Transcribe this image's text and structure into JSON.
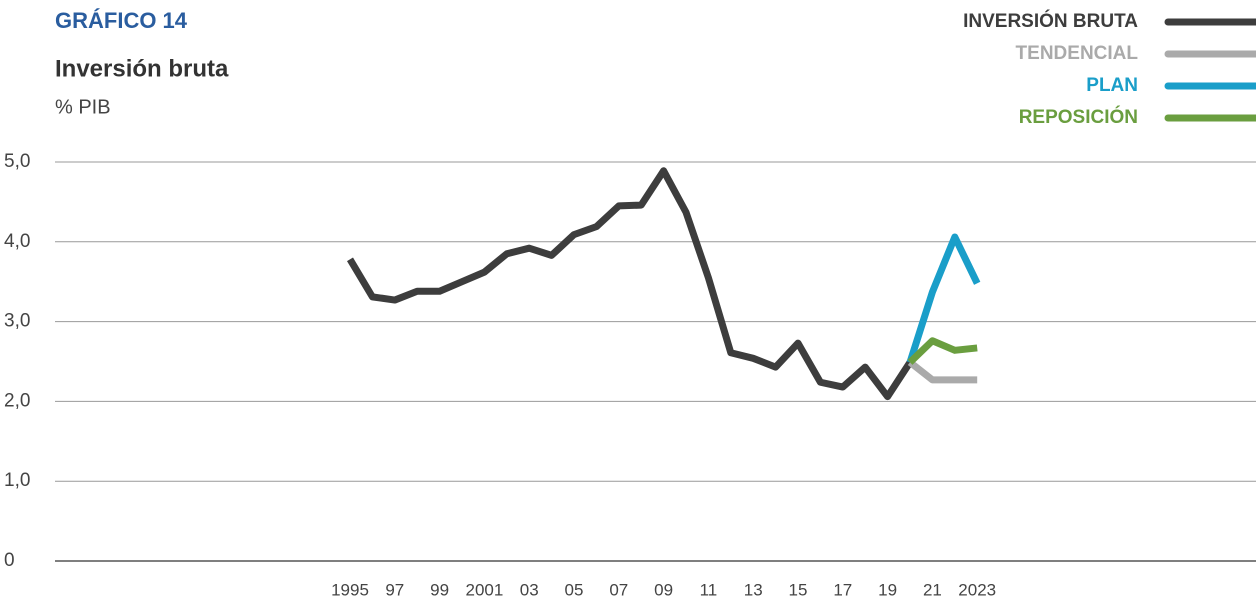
{
  "chart_data": {
    "type": "line",
    "title": "GRÁFICO 14",
    "subtitle": "Inversión bruta",
    "unit": "% PIB",
    "categories": [
      "1995",
      null,
      "97",
      null,
      "99",
      null,
      "2001",
      null,
      "03",
      null,
      "05",
      null,
      "07",
      null,
      "09",
      null,
      "11",
      null,
      "13",
      null,
      "15",
      null,
      "17",
      null,
      "19",
      null,
      "21",
      null,
      "2023"
    ],
    "series": [
      {
        "name": "INVERSIÓN BRUTA",
        "color": "#3d3d3d",
        "values": [
          3.78,
          3.31,
          3.27,
          3.38,
          3.38,
          3.5,
          3.62,
          3.85,
          3.92,
          3.83,
          4.09,
          4.19,
          4.45,
          4.46,
          4.89,
          4.37,
          3.55,
          2.61,
          2.54,
          2.43,
          2.73,
          2.24,
          2.18,
          2.43,
          2.06,
          2.49,
          null,
          null,
          null
        ]
      },
      {
        "name": "TENDENCIAL",
        "color": "#aaaaaa",
        "values": [
          null,
          null,
          null,
          null,
          null,
          null,
          null,
          null,
          null,
          null,
          null,
          null,
          null,
          null,
          null,
          null,
          null,
          null,
          null,
          null,
          null,
          null,
          null,
          null,
          null,
          2.49,
          2.27,
          2.27,
          2.27
        ]
      },
      {
        "name": "PLAN",
        "color": "#1a9ec9",
        "values": [
          null,
          null,
          null,
          null,
          null,
          null,
          null,
          null,
          null,
          null,
          null,
          null,
          null,
          null,
          null,
          null,
          null,
          null,
          null,
          null,
          null,
          null,
          null,
          null,
          null,
          2.49,
          3.37,
          4.06,
          3.48
        ]
      },
      {
        "name": "REPOSICIÓN",
        "color": "#6a9e3f",
        "values": [
          null,
          null,
          null,
          null,
          null,
          null,
          null,
          null,
          null,
          null,
          null,
          null,
          null,
          null,
          null,
          null,
          null,
          null,
          null,
          null,
          null,
          null,
          null,
          null,
          null,
          2.49,
          2.76,
          2.64,
          2.67
        ]
      }
    ],
    "ylim": [
      0,
      5
    ],
    "yticks": [
      0,
      {
        "value": 1,
        "label": "1,0"
      },
      {
        "value": 2,
        "label": "2,0"
      },
      {
        "value": 3,
        "label": "3,0"
      },
      {
        "value": 4,
        "label": "4,0"
      },
      {
        "value": 5,
        "label": "5,0"
      }
    ],
    "grid": true,
    "legend": "top-right"
  }
}
